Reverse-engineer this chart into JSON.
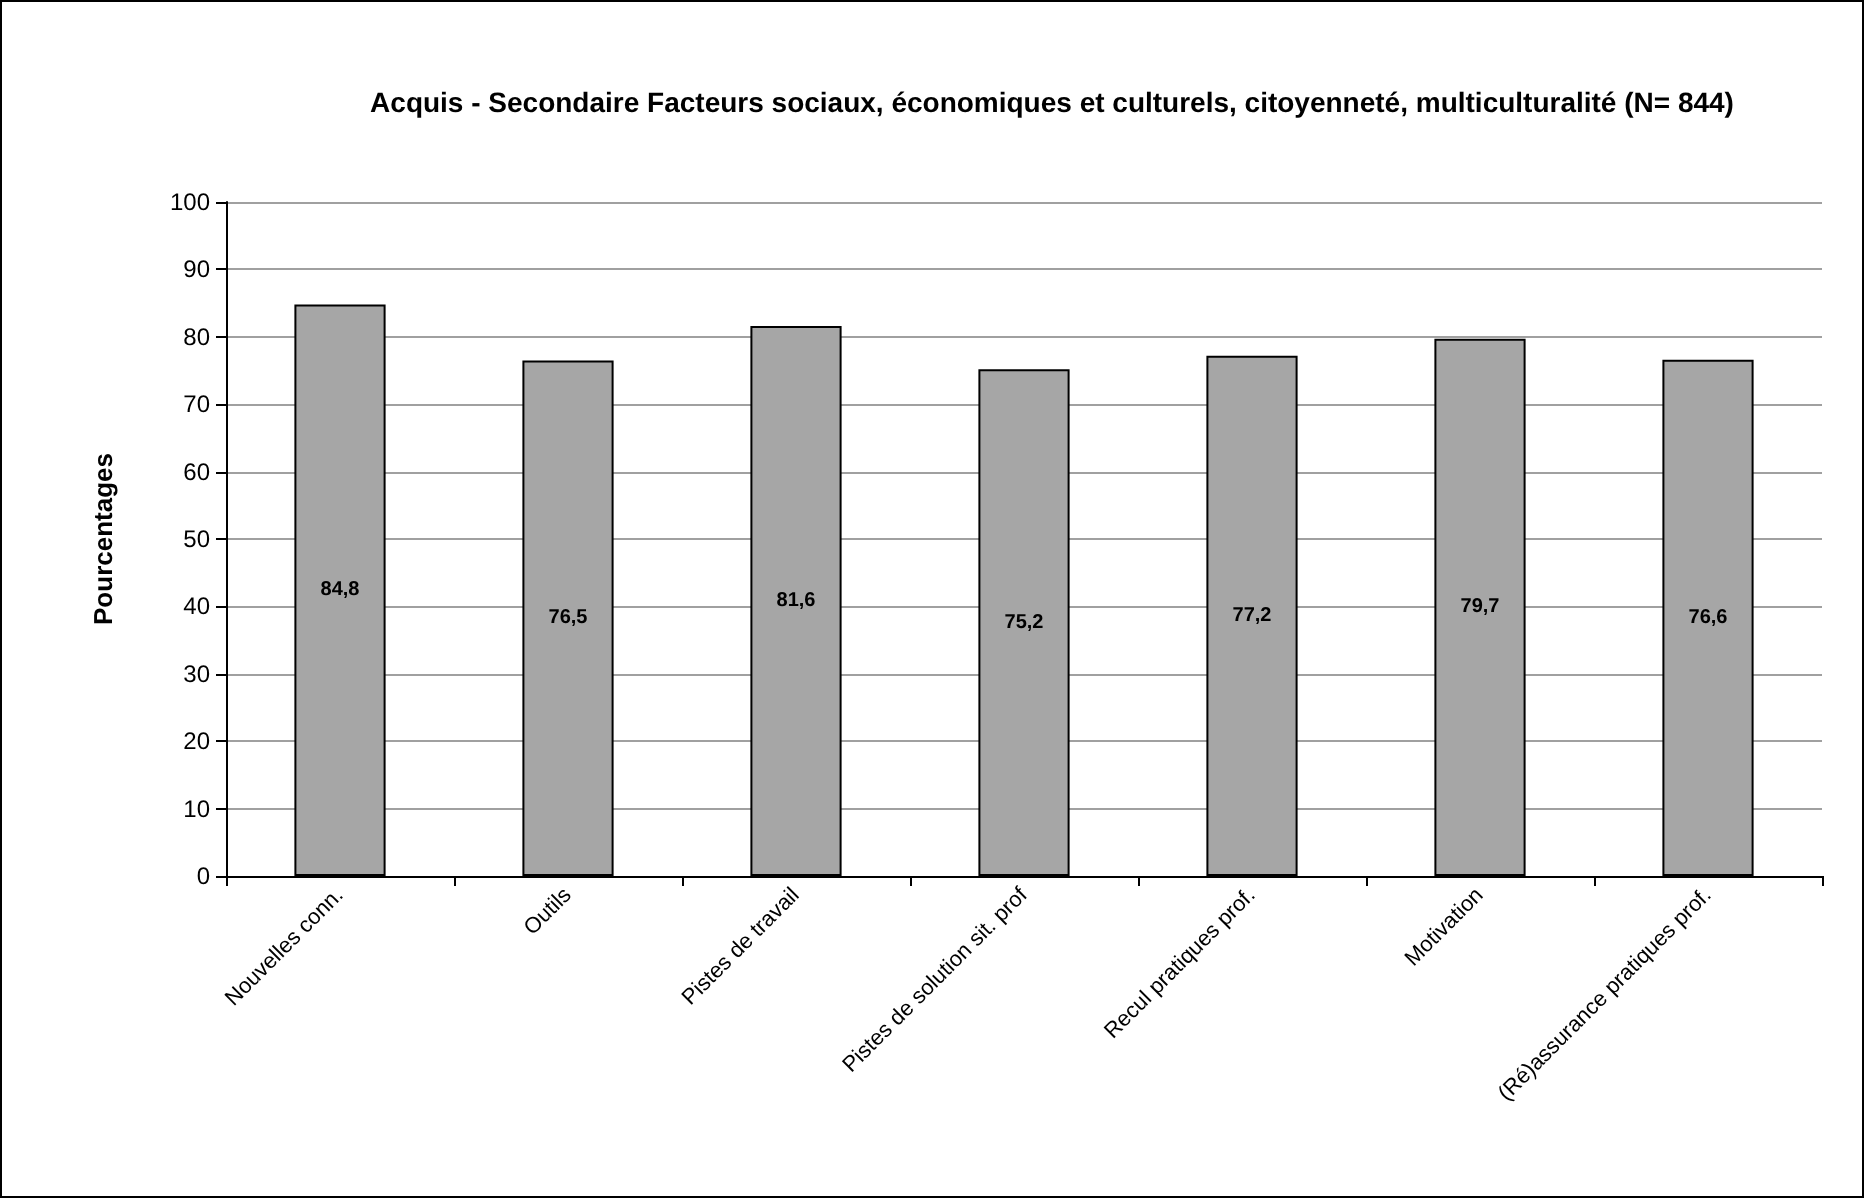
{
  "chart_data": {
    "type": "bar",
    "title": "Acquis - Secondaire Facteurs sociaux, économiques et culturels, citoyenneté, multiculturalité (N= 844)",
    "ylabel": "Pourcentages",
    "categories": [
      "Nouvelles conn.",
      "Outils",
      "Pistes de travail",
      "Pistes de solution sit. prof",
      "Recul pratiques prof.",
      "Motivation",
      "(Ré)assurance pratiques prof."
    ],
    "values": [
      84.8,
      76.5,
      81.6,
      75.2,
      77.2,
      79.7,
      76.6
    ],
    "value_labels": [
      "84,8",
      "76,5",
      "81,6",
      "75,2",
      "77,2",
      "79,7",
      "76,6"
    ],
    "color": "#a6a6a6",
    "ylim": [
      0,
      100
    ],
    "yticks": [
      0,
      10,
      20,
      30,
      40,
      50,
      60,
      70,
      80,
      90,
      100
    ],
    "grid": "y"
  }
}
